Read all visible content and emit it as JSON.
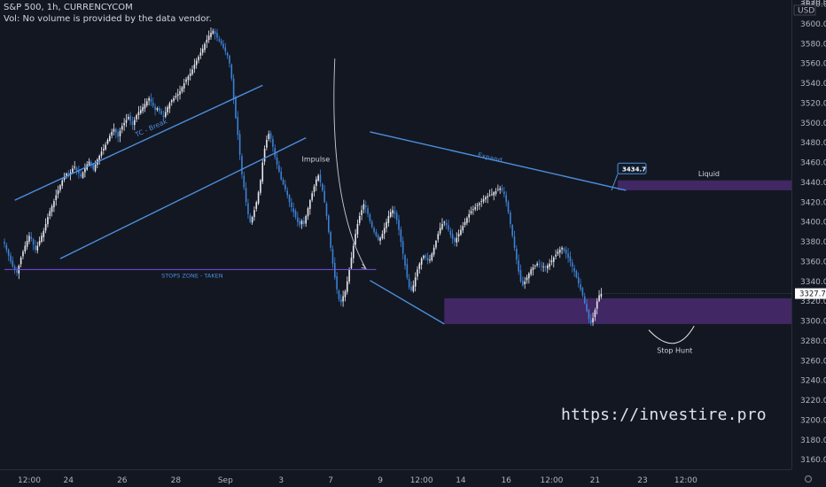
{
  "header": {
    "title": "S&P 500, 1h, CURRENCYCOM",
    "volume_note": "Vol: No volume is provided by the data vendor."
  },
  "watermark": "https://investire.pro",
  "chart_data": {
    "type": "candlestick",
    "symbol": "S&P 500",
    "interval": "1h",
    "currency": "USD",
    "last_price_label": "3327.7",
    "ylim": [
      3140,
      3640
    ],
    "y_ticks": [
      "3620.0",
      "3600.0",
      "3580.0",
      "3560.0",
      "3540.0",
      "3520.0",
      "3500.0",
      "3480.0",
      "3460.0",
      "3440.0",
      "3420.0",
      "3400.0",
      "3380.0",
      "3360.0",
      "3340.0",
      "3320.0",
      "3300.0",
      "3280.0",
      "3260.0",
      "3240.0",
      "3220.0",
      "3200.0",
      "3180.0",
      "3160.0"
    ],
    "x_ticks": [
      "12:00",
      "24",
      "26",
      "28",
      "Sep",
      "3",
      "7",
      "9",
      "12:00",
      "14",
      "16",
      "12:00",
      "21",
      "23",
      "12:00"
    ],
    "x_tick_index": [
      12,
      31,
      57,
      83,
      107,
      134,
      158,
      182,
      202,
      221,
      243,
      265,
      286,
      309,
      330
    ],
    "closes": [
      3378,
      3372,
      3366,
      3360,
      3355,
      3352,
      3349,
      3356,
      3364,
      3370,
      3376,
      3381,
      3386,
      3383,
      3377,
      3372,
      3376,
      3381,
      3386,
      3391,
      3398,
      3405,
      3411,
      3416,
      3421,
      3427,
      3432,
      3437,
      3442,
      3445,
      3449,
      3446,
      3450,
      3454,
      3456,
      3452,
      3449,
      3446,
      3450,
      3454,
      3458,
      3461,
      3457,
      3453,
      3458,
      3463,
      3467,
      3471,
      3474,
      3478,
      3483,
      3487,
      3491,
      3494,
      3490,
      3486,
      3492,
      3497,
      3500,
      3503,
      3506,
      3502,
      3498,
      3503,
      3508,
      3511,
      3513,
      3516,
      3519,
      3522,
      3525,
      3521,
      3517,
      3513,
      3515,
      3512,
      3509,
      3506,
      3511,
      3516,
      3520,
      3523,
      3525,
      3527,
      3529,
      3532,
      3536,
      3540,
      3544,
      3547,
      3550,
      3554,
      3559,
      3563,
      3567,
      3571,
      3575,
      3580,
      3584,
      3588,
      3591,
      3593,
      3590,
      3586,
      3583,
      3580,
      3576,
      3572,
      3568,
      3560,
      3545,
      3525,
      3505,
      3488,
      3468,
      3448,
      3435,
      3420,
      3408,
      3400,
      3405,
      3412,
      3420,
      3430,
      3442,
      3460,
      3474,
      3483,
      3489,
      3484,
      3476,
      3466,
      3458,
      3451,
      3443,
      3438,
      3433,
      3427,
      3420,
      3415,
      3410,
      3405,
      3400,
      3397,
      3401,
      3398,
      3406,
      3414,
      3422,
      3429,
      3436,
      3443,
      3447,
      3440,
      3432,
      3420,
      3406,
      3390,
      3374,
      3358,
      3344,
      3332,
      3322,
      3319,
      3325,
      3330,
      3340,
      3352,
      3364,
      3376,
      3388,
      3398,
      3406,
      3412,
      3418,
      3415,
      3408,
      3401,
      3395,
      3390,
      3386,
      3382,
      3384,
      3388,
      3394,
      3400,
      3406,
      3410,
      3412,
      3408,
      3402,
      3392,
      3380,
      3368,
      3356,
      3344,
      3334,
      3331,
      3336,
      3344,
      3352,
      3358,
      3363,
      3366,
      3364,
      3361,
      3362,
      3368,
      3374,
      3381,
      3388,
      3394,
      3398,
      3400,
      3397,
      3392,
      3387,
      3383,
      3380,
      3384,
      3388,
      3392,
      3396,
      3400,
      3404,
      3408,
      3411,
      3413,
      3415,
      3417,
      3419,
      3421,
      3423,
      3425,
      3426,
      3427,
      3428,
      3430,
      3431,
      3433,
      3434,
      3432,
      3428,
      3420,
      3410,
      3398,
      3386,
      3374,
      3362,
      3350,
      3340,
      3336,
      3340,
      3344,
      3348,
      3352,
      3354,
      3356,
      3358,
      3357,
      3356,
      3355,
      3354,
      3356,
      3358,
      3361,
      3364,
      3367,
      3370,
      3372,
      3374,
      3371,
      3368,
      3364,
      3360,
      3355,
      3350,
      3344,
      3338,
      3332,
      3326,
      3318,
      3310,
      3302,
      3298,
      3303,
      3311,
      3320,
      3326,
      3327.7
    ],
    "pattern_lines": [
      {
        "name": "TC - Break",
        "points": [
          [
            5,
            3422
          ],
          [
            125,
            3538
          ]
        ]
      },
      {
        "name": "lower-channel",
        "points": [
          [
            27,
            3363
          ],
          [
            146,
            3485
          ]
        ]
      },
      {
        "name": "Expand",
        "points": [
          [
            177,
            3491
          ],
          [
            301,
            3432
          ]
        ]
      },
      {
        "name": "lower-expand",
        "points": [
          [
            177,
            3341
          ],
          [
            213,
            3297
          ]
        ]
      },
      {
        "name": "STOPS ZONE - TAKEN",
        "points": [
          [
            0,
            3352
          ],
          [
            180,
            3352
          ]
        ]
      }
    ],
    "zones": [
      {
        "name": "Liquid",
        "x_range": [
          297,
          390
        ],
        "y_range": [
          3432,
          3442
        ]
      },
      {
        "name": "demand",
        "x_range": [
          213,
          390
        ],
        "y_range": [
          3297,
          3323
        ]
      }
    ],
    "annotations": {
      "channel_label": "TC - Break",
      "stops_label": "STOPS ZONE - TAKEN",
      "impulse_label": "Impulse",
      "expand_label": "Expand",
      "liquid_label": "Liquid",
      "stop_hunt_label": "Stop Hunt",
      "price_callout": "3434.7"
    },
    "colors": {
      "bull": "#e8e8ee",
      "bear": "#3b82d6",
      "lines": "#4c8fdd",
      "stops_line": "#7a4fe0",
      "zone": "#4a2a6e",
      "background": "#131722"
    }
  }
}
